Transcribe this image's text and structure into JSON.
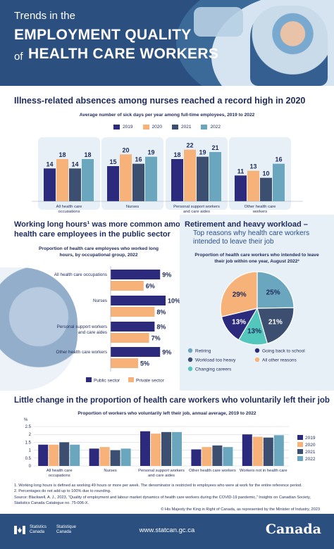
{
  "header": {
    "kicker": "Trends in the",
    "title_line1": "EMPLOYMENT QUALITY",
    "title_of": "of",
    "title_line2": "HEALTH CARE WORKERS"
  },
  "section1": {
    "heading": "Illness-related absences among nurses reached a record high in 2020",
    "subtitle": "Average number of sick days per year among full-time employees, 2019 to 2022"
  },
  "section2": {
    "heading_line1": "Working long hours¹ was more common among",
    "heading_line2": "health care employees in the public sector",
    "subtitle_line1": "Proportion of health care employees who worked long",
    "subtitle_line2": "hours, by occupational group, 2022"
  },
  "section3": {
    "heading": "Retirement and heavy workload –",
    "subheading_line1": "Top reasons why health care workers",
    "subheading_line2": "intended to leave their job",
    "subtitle_line1": "Proportion of health care workers who intended to leave",
    "subtitle_line2": "their job within one year, August 2022²"
  },
  "section4": {
    "heading": "Little change in the proportion of health care workers who voluntarily left their job",
    "subtitle": "Proportion of workers who voluntarily left their job, annual average, 2019 to 2022"
  },
  "colors": {
    "navy": "#2b2a7c",
    "orange": "#f7b27a",
    "slate": "#3d4f70",
    "teal": "#6aa7bf",
    "green": "#54c7bd",
    "blue_header": "#2b4f7e"
  },
  "chart_data": [
    {
      "type": "bar",
      "categories": [
        "All health care occupations",
        "Nurses",
        "Personal support workers and care aides",
        "Other health care workers"
      ],
      "series": [
        {
          "name": "2019",
          "values": [
            14,
            15,
            18,
            11
          ]
        },
        {
          "name": "2020",
          "values": [
            18,
            20,
            22,
            13
          ]
        },
        {
          "name": "2021",
          "values": [
            14,
            16,
            19,
            10
          ]
        },
        {
          "name": "2022",
          "values": [
            18,
            19,
            21,
            16
          ]
        }
      ],
      "ylim": [
        0,
        24
      ]
    },
    {
      "type": "bar",
      "orientation": "horizontal",
      "categories": [
        "All health care occupations",
        "Nurses",
        "Personal support workers and care aides",
        "Other health care workers"
      ],
      "series": [
        {
          "name": "Public sector",
          "values": [
            9,
            10,
            8,
            9
          ]
        },
        {
          "name": "Private sector",
          "values": [
            6,
            8,
            7,
            5
          ]
        }
      ],
      "value_labels": [
        [
          "9%",
          "6%"
        ],
        [
          "10%",
          "8%"
        ],
        [
          "8%",
          "7%"
        ],
        [
          "9%",
          "5%"
        ]
      ],
      "xlim": [
        0,
        10.5
      ]
    },
    {
      "type": "pie",
      "labels": [
        "Retiring",
        "Going back to school",
        "Workload too heavy",
        "All other reasons",
        "Changing careers"
      ],
      "slices": [
        {
          "name": "Retiring",
          "value": 25,
          "label": "25%",
          "color": "#6aa7bf"
        },
        {
          "name": "Workload too heavy",
          "value": 21,
          "label": "21%",
          "color": "#3d4f70"
        },
        {
          "name": "Changing careers",
          "value": 13,
          "label": "13%",
          "color": "#54c7bd"
        },
        {
          "name": "Going back to school",
          "value": 13,
          "label": "13%",
          "color": "#2b2a7c"
        },
        {
          "name": "All other reasons",
          "value": 29,
          "label": "29%",
          "color": "#f7b27a"
        }
      ]
    },
    {
      "type": "bar",
      "categories": [
        "All health care occupations",
        "Nurses",
        "Personal support workers and care aides",
        "Other health care workers",
        "Workers not in health care"
      ],
      "series": [
        {
          "name": "2019",
          "values": [
            1.35,
            1.1,
            2.2,
            1.05,
            2.0
          ]
        },
        {
          "name": "2020",
          "values": [
            1.35,
            1.2,
            2.05,
            1.2,
            1.85
          ]
        },
        {
          "name": "2021",
          "values": [
            1.5,
            1.0,
            2.15,
            1.3,
            1.8
          ]
        },
        {
          "name": "2022",
          "values": [
            1.35,
            1.1,
            2.15,
            1.2,
            1.95
          ]
        }
      ],
      "ylabel": "%",
      "yticks": [
        "0",
        "0.5",
        "1",
        "1.5",
        "2",
        "2.5"
      ],
      "ylim": [
        0,
        2.5
      ]
    }
  ],
  "footnotes": [
    "1. Working long hours is defined as working 49 hours or more per week. The denominator is restricted to employees who were at work for the entire reference period.",
    "2. Percentages do not add up to 100% due to rounding.",
    "Source: Blackwell, A. J., 2023, “Quality of employment and labour market dynamics of health care workers during the COVID-19 pandemic,” Insights on Canadian Society,",
    "Statistics Canada Catalogue no. 75-006-X."
  ],
  "copyright": "© His Majesty the King in Right of Canada, as represented by the Minister of Industry, 2023",
  "footer": {
    "agency_en_1": "Statistics",
    "agency_en_2": "Canada",
    "agency_fr_1": "Statistique",
    "agency_fr_2": "Canada",
    "url": "www.statcan.gc.ca",
    "wordmark": "Canada"
  }
}
